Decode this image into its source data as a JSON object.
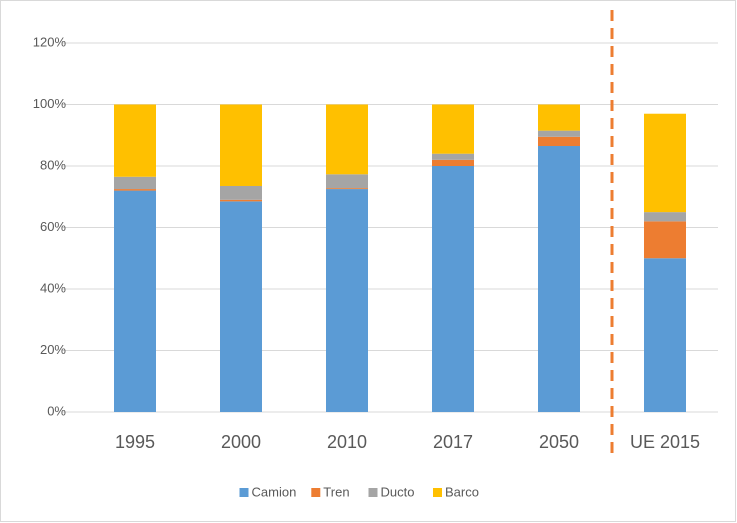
{
  "chart_data": {
    "type": "stacked_bar",
    "categories": [
      "1995",
      "2000",
      "2010",
      "2017",
      "2050",
      "UE 2015"
    ],
    "series": [
      {
        "name": "Camion",
        "color": "#5b9bd5",
        "values": [
          72,
          68.5,
          72.5,
          80,
          86.5,
          50
        ]
      },
      {
        "name": "Tren",
        "color": "#ed7d31",
        "values": [
          0.5,
          0.5,
          0.3,
          2,
          3,
          12
        ]
      },
      {
        "name": "Ducto",
        "color": "#a5a5a5",
        "values": [
          4,
          4.5,
          4.5,
          2,
          2,
          3
        ]
      },
      {
        "name": "Barco",
        "color": "#ffc000",
        "values": [
          23.5,
          26.5,
          22.7,
          16,
          8.5,
          32
        ]
      }
    ],
    "ylim": [
      0,
      120
    ],
    "yticks": [
      {
        "value": 0,
        "label": "0%"
      },
      {
        "value": 20,
        "label": "20%"
      },
      {
        "value": 40,
        "label": "40%"
      },
      {
        "value": 60,
        "label": "60%"
      },
      {
        "value": 80,
        "label": "80%"
      },
      {
        "value": 100,
        "label": "100%"
      },
      {
        "value": 120,
        "label": "120%"
      }
    ],
    "grid": true,
    "legend": "bottom"
  }
}
